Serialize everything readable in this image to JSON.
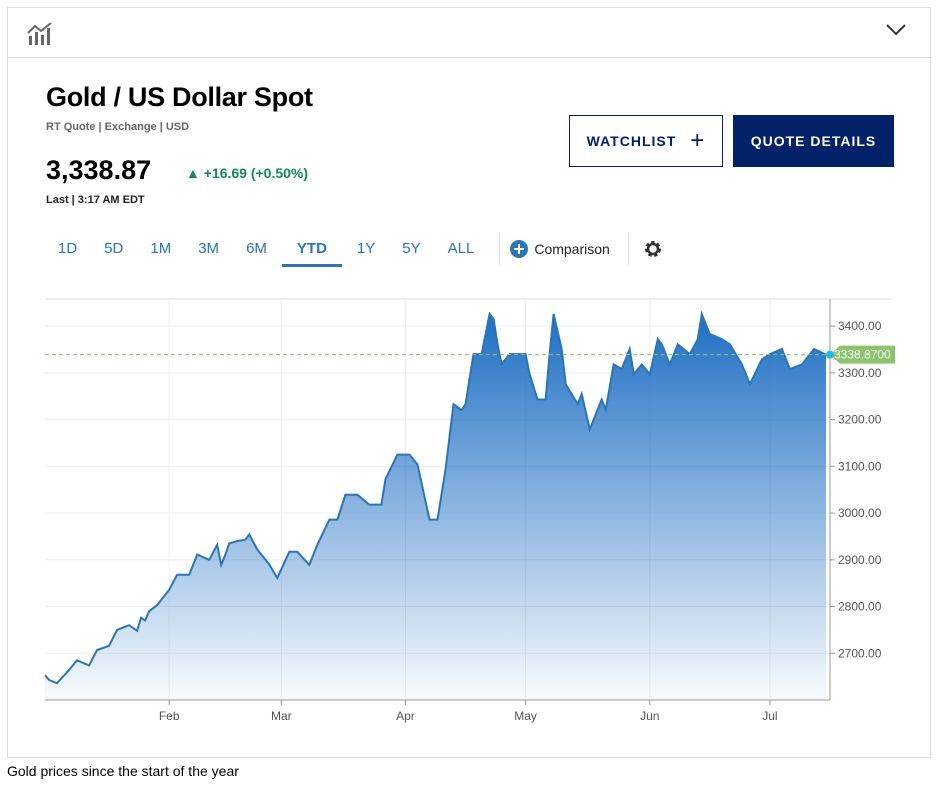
{
  "header": {
    "title": "Gold / US Dollar Spot",
    "subtitle": "RT Quote | Exchange | USD",
    "price": "3,338.87",
    "change": "▲ +16.69 (+0.50%)",
    "last": "Last | 3:17 AM EDT"
  },
  "buttons": {
    "watchlist": "WATCHLIST",
    "watchlist_icon": "+",
    "quote_details": "QUOTE DETAILS"
  },
  "tabs": [
    "1D",
    "5D",
    "1M",
    "3M",
    "6M",
    "YTD",
    "1Y",
    "5Y",
    "ALL"
  ],
  "active_tab": "YTD",
  "comparison_label": "Comparison",
  "caption": "Gold prices since the start of the year",
  "colors": {
    "navy": "#012169",
    "line": "#2a76b5",
    "up": "#118a5a",
    "marker": "#8bc46c"
  },
  "chart_data": {
    "type": "area",
    "title": "Gold / US Dollar Spot YTD",
    "xlabel": "",
    "ylabel": "",
    "x_unit": "day of year",
    "x_ticks": [
      {
        "day": 31,
        "label": "Feb"
      },
      {
        "day": 59,
        "label": "Mar"
      },
      {
        "day": 90,
        "label": "Apr"
      },
      {
        "day": 120,
        "label": "May"
      },
      {
        "day": 151,
        "label": "Jun"
      },
      {
        "day": 181,
        "label": "Jul"
      }
    ],
    "y_ticks": [
      "2700.00",
      "2800.00",
      "2900.00",
      "3000.00",
      "3100.00",
      "3200.00",
      "3300.00",
      "3400.00"
    ],
    "ylim": [
      2600,
      3458
    ],
    "xlim": [
      0,
      196
    ],
    "last_value_label": "3338.8700",
    "last_value": 3338.87,
    "x": [
      0,
      1,
      3,
      6,
      8,
      11,
      13,
      16,
      18,
      21,
      23,
      24,
      25,
      26,
      28,
      31,
      33,
      36,
      38,
      41,
      43,
      44,
      45,
      46,
      48,
      50,
      51,
      53,
      56,
      58,
      61,
      63,
      66,
      68,
      71,
      73,
      75,
      78,
      81,
      84,
      85,
      88,
      91,
      93,
      96,
      98,
      100,
      102,
      104,
      105,
      107,
      109,
      111,
      112,
      113,
      114,
      116,
      119,
      120,
      121,
      123,
      125,
      126,
      127,
      129,
      130,
      133,
      134,
      136,
      139,
      140,
      142,
      144,
      146,
      147,
      149,
      151,
      153,
      154,
      156,
      158,
      161,
      163,
      164,
      166,
      169,
      171,
      174,
      176,
      179,
      181,
      184,
      186,
      189,
      192,
      195
    ],
    "y": [
      2653,
      2643,
      2636,
      2664,
      2685,
      2674,
      2707,
      2716,
      2750,
      2760,
      2748,
      2776,
      2770,
      2790,
      2803,
      2836,
      2868,
      2868,
      2911,
      2900,
      2932,
      2889,
      2910,
      2935,
      2940,
      2943,
      2954,
      2922,
      2890,
      2861,
      2917,
      2917,
      2889,
      2932,
      2986,
      2986,
      3039,
      3039,
      3018,
      3018,
      3072,
      3125,
      3125,
      3104,
      2986,
      2986,
      3093,
      3233,
      3220,
      3233,
      3340,
      3340,
      3426,
      3415,
      3361,
      3318,
      3340,
      3340,
      3340,
      3297,
      3243,
      3243,
      3340,
      3426,
      3351,
      3276,
      3233,
      3255,
      3179,
      3243,
      3221,
      3318,
      3308,
      3351,
      3297,
      3318,
      3297,
      3372,
      3361,
      3318,
      3361,
      3340,
      3372,
      3426,
      3383,
      3372,
      3361,
      3318,
      3276,
      3329,
      3340,
      3351,
      3308,
      3318,
      3351,
      3338.87
    ]
  }
}
